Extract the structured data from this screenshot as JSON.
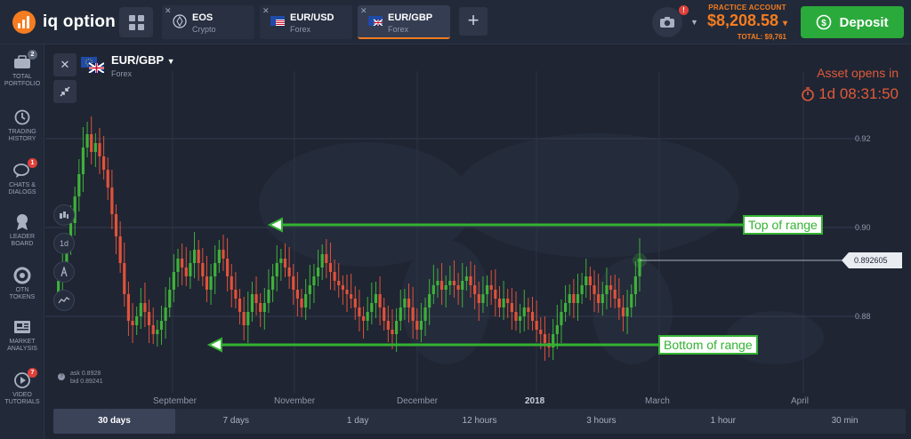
{
  "topbar": {
    "logo_text": "iq option",
    "tabs": [
      {
        "name": "EOS",
        "sub": "Crypto",
        "icon": "eos-icon"
      },
      {
        "name": "EUR/USD",
        "sub": "Forex",
        "icon": "eu-us-flag-icon"
      },
      {
        "name": "EUR/GBP",
        "sub": "Forex",
        "icon": "eu-gb-flag-icon",
        "active": true
      }
    ],
    "add_tab": "+",
    "camera_badge": "!",
    "account_label": "PRACTICE ACCOUNT",
    "balance": "$8,208.58",
    "total": "TOTAL: $9,761",
    "deposit_label": "Deposit"
  },
  "sidebar": {
    "items": [
      {
        "label1": "TOTAL",
        "label2": "PORTFOLIO",
        "badge": "2",
        "icon": "portfolio-icon"
      },
      {
        "label1": "TRADING",
        "label2": "HISTORY",
        "badge": "",
        "icon": "history-icon"
      },
      {
        "label1": "CHATS &",
        "label2": "DIALOGS",
        "badge": "1",
        "icon": "chat-icon"
      },
      {
        "label1": "LEADER",
        "label2": "BOARD",
        "badge": "",
        "icon": "leaderboard-icon"
      },
      {
        "label1": "OTN",
        "label2": "TOKENS",
        "badge": "",
        "icon": "otn-token-icon"
      },
      {
        "label1": "MARKET",
        "label2": "ANALYSIS",
        "badge": "",
        "icon": "market-analysis-icon"
      },
      {
        "label1": "VIDEO",
        "label2": "TUTORIALS",
        "badge": "7",
        "icon": "video-icon"
      }
    ]
  },
  "chart": {
    "asset_name": "EUR/GBP",
    "asset_type": "Forex",
    "opens_label": "Asset opens in",
    "countdown": "1d 08:31:50",
    "current_price": "0.892605",
    "ask": "ask 0.8928",
    "bid": "bid 0.89241",
    "interval_button": "1d",
    "annotations": {
      "top": "Top of range",
      "bottom": "Bottom of range"
    },
    "y_labels": [
      "0.92",
      "0.90",
      "0.88"
    ],
    "x_labels": [
      "September",
      "November",
      "December",
      "2018",
      "March",
      "April"
    ],
    "colors": {
      "up": "#3fb13a",
      "down": "#e0523a",
      "annotation": "#34b233",
      "accent": "#f57c20"
    }
  },
  "timeframes": [
    "30 days",
    "7 days",
    "1 day",
    "12 hours",
    "3 hours",
    "1 hour",
    "30 min"
  ],
  "chart_data": {
    "type": "candlestick",
    "x_ticks": [
      "September",
      "November",
      "December",
      "2018",
      "March",
      "April"
    ],
    "ylim": [
      0.87,
      0.925
    ],
    "y_ticks": [
      0.88,
      0.9,
      0.92
    ],
    "last_price": 0.892605,
    "range_top": 0.9,
    "range_bottom": 0.873,
    "close_series": [
      0.885,
      0.888,
      0.892,
      0.896,
      0.901,
      0.907,
      0.912,
      0.918,
      0.921,
      0.917,
      0.919,
      0.916,
      0.913,
      0.909,
      0.903,
      0.898,
      0.892,
      0.885,
      0.879,
      0.878,
      0.88,
      0.883,
      0.881,
      0.878,
      0.876,
      0.877,
      0.879,
      0.882,
      0.886,
      0.89,
      0.893,
      0.891,
      0.889,
      0.892,
      0.895,
      0.892,
      0.889,
      0.886,
      0.889,
      0.892,
      0.895,
      0.893,
      0.889,
      0.886,
      0.884,
      0.881,
      0.878,
      0.881,
      0.885,
      0.883,
      0.881,
      0.883,
      0.886,
      0.889,
      0.892,
      0.893,
      0.891,
      0.889,
      0.886,
      0.884,
      0.882,
      0.885,
      0.887,
      0.889,
      0.891,
      0.894,
      0.892,
      0.89,
      0.888,
      0.887,
      0.886,
      0.885,
      0.884,
      0.882,
      0.88,
      0.879,
      0.881,
      0.883,
      0.885,
      0.882,
      0.879,
      0.877,
      0.876,
      0.879,
      0.882,
      0.884,
      0.882,
      0.879,
      0.877,
      0.879,
      0.882,
      0.885,
      0.887,
      0.888,
      0.886,
      0.887,
      0.888,
      0.887,
      0.886,
      0.888,
      0.889,
      0.887,
      0.885,
      0.883,
      0.885,
      0.887,
      0.886,
      0.884,
      0.882,
      0.884,
      0.883,
      0.881,
      0.879,
      0.88,
      0.882,
      0.881,
      0.879,
      0.877,
      0.876,
      0.874,
      0.873,
      0.876,
      0.878,
      0.881,
      0.883,
      0.885,
      0.883,
      0.885,
      0.887,
      0.889,
      0.887,
      0.885,
      0.883,
      0.885,
      0.887,
      0.886,
      0.884,
      0.882,
      0.88,
      0.882,
      0.885,
      0.889,
      0.893
    ]
  }
}
